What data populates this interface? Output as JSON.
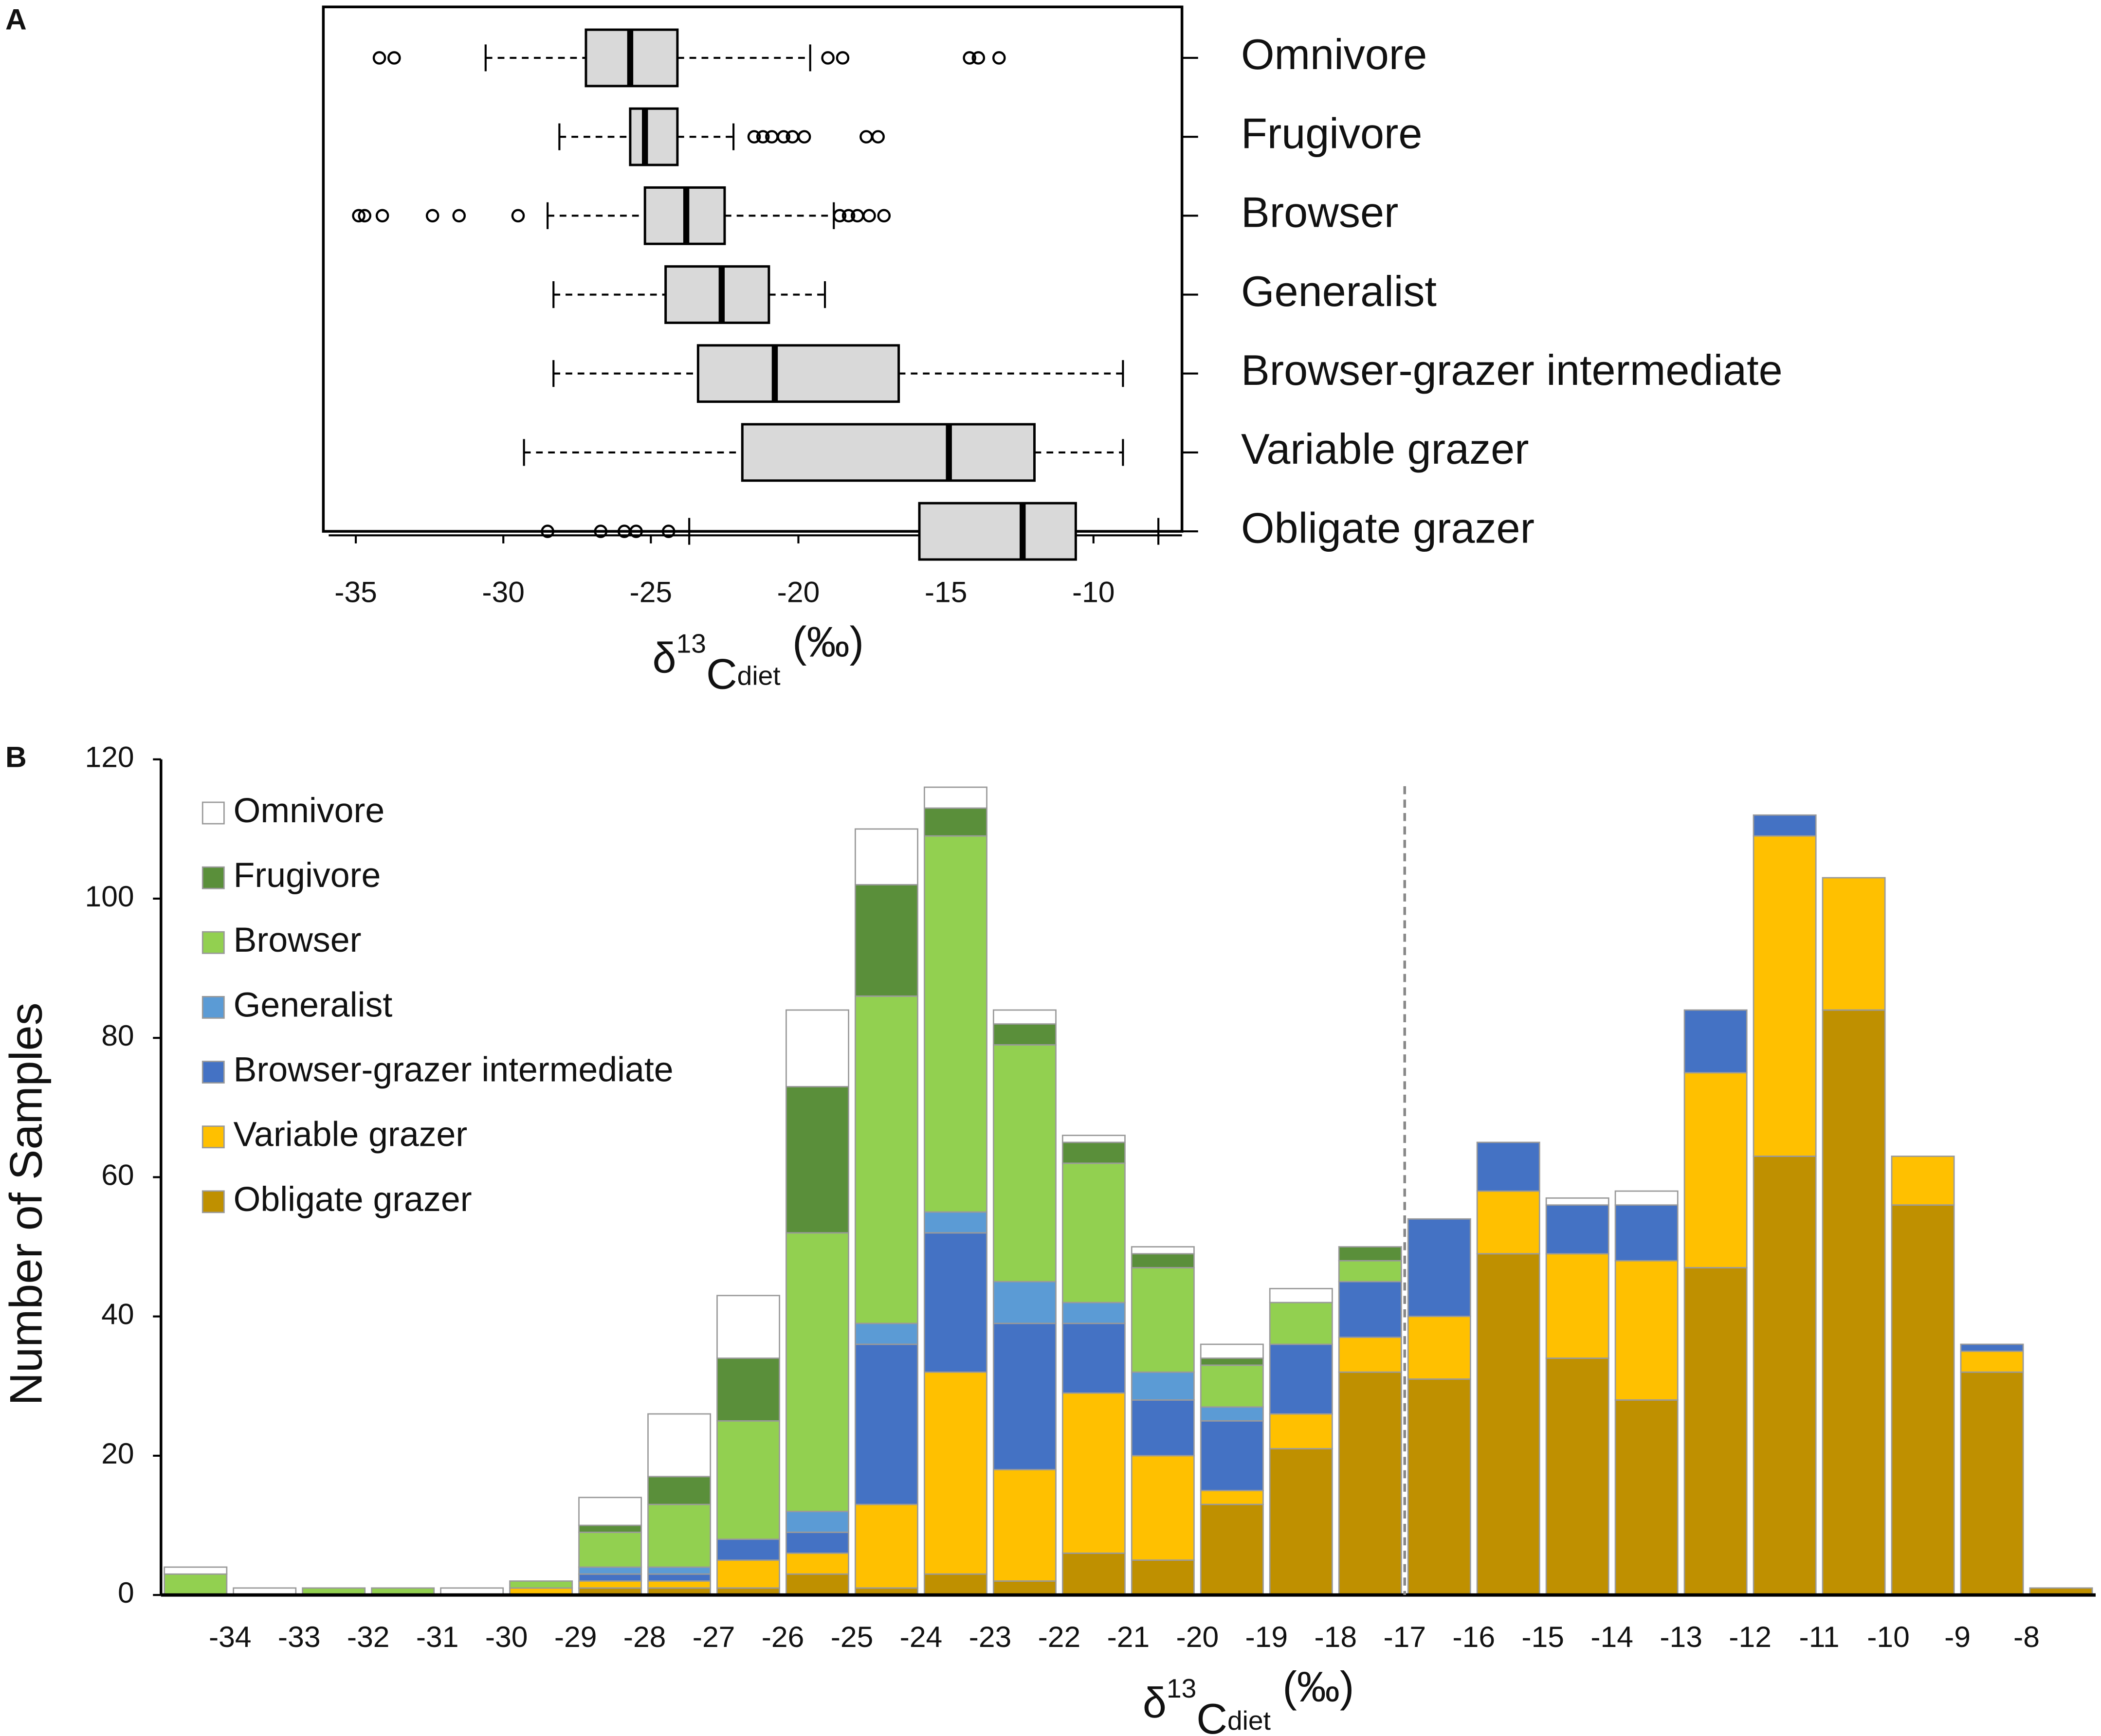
{
  "chart_data": [
    {
      "type": "boxplot",
      "panel": "A",
      "categories": [
        "Omnivore",
        "Frugivore",
        "Browser",
        "Generalist",
        "Browser-grazer intermediate",
        "Variable grazer",
        "Obligate grazer"
      ],
      "boxes": [
        {
          "whislo": -30.6,
          "q1": -27.2,
          "med": -25.7,
          "q3": -24.1,
          "whishi": -19.6,
          "fliers": [
            -34.2,
            -33.7,
            -19.0,
            -18.5,
            -14.2,
            -13.9,
            -13.2
          ]
        },
        {
          "whislo": -28.1,
          "q1": -25.7,
          "med": -25.2,
          "q3": -24.1,
          "whishi": -22.2,
          "fliers": [
            -21.5,
            -21.2,
            -20.9,
            -20.5,
            -20.2,
            -19.8,
            -17.7,
            -17.3
          ]
        },
        {
          "whislo": -28.5,
          "q1": -25.2,
          "med": -23.8,
          "q3": -22.5,
          "whishi": -18.8,
          "fliers": [
            -34.9,
            -34.7,
            -34.1,
            -32.4,
            -31.5,
            -29.5,
            -18.6,
            -18.3,
            -18.0,
            -17.6,
            -17.1
          ]
        },
        {
          "whislo": -28.3,
          "q1": -24.5,
          "med": -22.6,
          "q3": -21.0,
          "whishi": -19.1,
          "fliers": []
        },
        {
          "whislo": -28.3,
          "q1": -23.4,
          "med": -20.8,
          "q3": -16.6,
          "whishi": -9.0,
          "fliers": []
        },
        {
          "whislo": -29.3,
          "q1": -21.9,
          "med": -14.9,
          "q3": -12.0,
          "whishi": -9.0,
          "fliers": []
        },
        {
          "whislo": -23.7,
          "q1": -15.9,
          "med": -12.4,
          "q3": -10.6,
          "whishi": -7.8,
          "fliers": [
            -28.5,
            -26.7,
            -25.9,
            -25.5,
            -24.4
          ]
        }
      ],
      "color": "#d9d9d9",
      "xlim": [
        -36.1,
        -7.0
      ],
      "xticks": [
        -35,
        -30,
        -25,
        -20,
        -15,
        -10
      ],
      "xlabel": [
        "δ",
        "13",
        "C",
        "diet",
        " (‰)"
      ]
    },
    {
      "type": "histogram",
      "panel": "B",
      "ylabel": "Number of Samples",
      "xlabel": [
        "δ",
        "13",
        "C",
        "diet",
        " (‰)"
      ],
      "bins": [
        -35,
        -34,
        -33,
        -32,
        -31,
        -30,
        -29,
        -28,
        -27,
        -26,
        -25,
        -24,
        -23,
        -22,
        -21,
        -20,
        -19,
        -18,
        -17,
        -16,
        -15,
        -14,
        -13,
        -12,
        -11,
        -10,
        -9,
        -8,
        -7
      ],
      "series": [
        {
          "name": "Omnivore",
          "color": "#ffffff",
          "values": [
            1,
            1,
            0,
            0,
            1,
            0,
            4,
            9,
            9,
            11,
            8,
            3,
            2,
            1,
            1,
            2,
            2,
            0,
            0,
            0,
            1,
            2,
            0,
            0,
            0,
            0,
            0,
            0
          ]
        },
        {
          "name": "Frugivore",
          "color": "#5a8f3a",
          "values": [
            0,
            0,
            0,
            0,
            0,
            0,
            1,
            4,
            9,
            21,
            16,
            4,
            3,
            3,
            2,
            1,
            0,
            2,
            0,
            0,
            0,
            0,
            0,
            0,
            0,
            0,
            0,
            0
          ]
        },
        {
          "name": "Browser",
          "color": "#92d050",
          "values": [
            3,
            0,
            1,
            1,
            0,
            1,
            5,
            9,
            17,
            40,
            47,
            54,
            34,
            20,
            15,
            6,
            6,
            3,
            0,
            0,
            0,
            0,
            0,
            0,
            0,
            0,
            0,
            0
          ]
        },
        {
          "name": "Generalist",
          "color": "#5b9bd5",
          "values": [
            0,
            0,
            0,
            0,
            0,
            0,
            1,
            1,
            0,
            3,
            3,
            3,
            6,
            3,
            4,
            2,
            0,
            0,
            0,
            0,
            0,
            0,
            0,
            0,
            0,
            0,
            0,
            0
          ]
        },
        {
          "name": "Browser-grazer intermediate",
          "color": "#4472c4",
          "values": [
            0,
            0,
            0,
            0,
            0,
            0,
            1,
            1,
            3,
            3,
            23,
            20,
            21,
            10,
            8,
            10,
            10,
            8,
            14,
            7,
            7,
            8,
            9,
            3,
            0,
            0,
            1,
            0
          ]
        },
        {
          "name": "Variable grazer",
          "color": "#ffc000",
          "values": [
            0,
            0,
            0,
            0,
            0,
            1,
            1,
            1,
            4,
            3,
            12,
            29,
            16,
            23,
            15,
            2,
            5,
            5,
            9,
            9,
            15,
            20,
            28,
            46,
            19,
            7,
            3,
            0
          ]
        },
        {
          "name": "Obligate grazer",
          "color": "#bf9000",
          "values": [
            0,
            0,
            0,
            0,
            0,
            0,
            1,
            1,
            1,
            3,
            1,
            3,
            2,
            6,
            5,
            13,
            21,
            32,
            31,
            49,
            34,
            28,
            47,
            63,
            84,
            56,
            32,
            1
          ]
        }
      ],
      "xlim": [
        -35,
        -7
      ],
      "xticks": [
        -34,
        -33,
        -32,
        -31,
        -30,
        -29,
        -28,
        -27,
        -26,
        -25,
        -24,
        -23,
        -22,
        -21,
        -20,
        -19,
        -18,
        -17,
        -16,
        -15,
        -14,
        -13,
        -12,
        -11,
        -10,
        -9,
        -8
      ],
      "ylim": [
        0,
        120
      ],
      "yticks": [
        0,
        20,
        40,
        60,
        80,
        100,
        120
      ],
      "vline": -17,
      "legend": "upper left"
    }
  ]
}
